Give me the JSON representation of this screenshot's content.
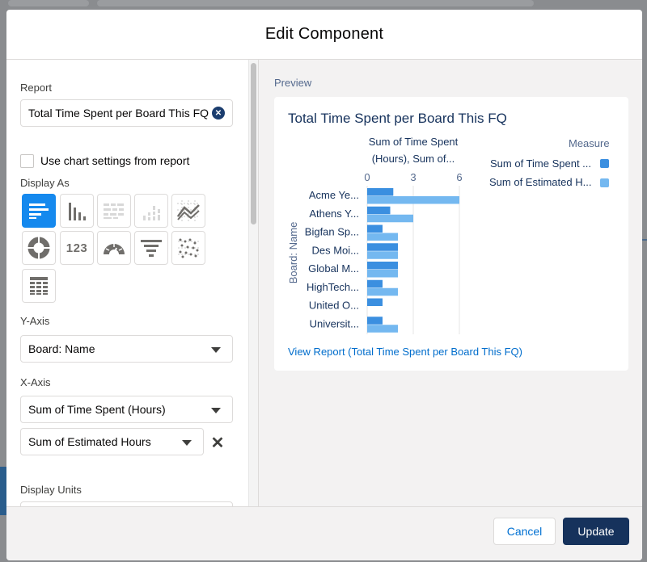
{
  "modal": {
    "title": "Edit Component"
  },
  "form": {
    "report_label": "Report",
    "report_value": "Total Time Spent per Board This FQ",
    "use_chart_settings_label": "Use chart settings from report",
    "use_chart_settings_checked": false,
    "display_as_label": "Display As",
    "display_as_selected": "horizontal-bar",
    "display_types": [
      "horizontal-bar",
      "vertical-bar",
      "stacked-horizontal-bar",
      "stacked-vertical-bar",
      "line",
      "donut",
      "metric",
      "gauge",
      "funnel",
      "scatter",
      "table"
    ],
    "metric_tile_text": "123",
    "y_axis_label": "Y-Axis",
    "y_axis_value": "Board: Name",
    "x_axis_label": "X-Axis",
    "x_axis_values": [
      "Sum of Time Spent (Hours)",
      "Sum of Estimated Hours"
    ],
    "display_units_label": "Display Units",
    "remove_icon": "close-icon"
  },
  "preview": {
    "label": "Preview",
    "card_title": "Total Time Spent per Board This FQ",
    "view_report_link": "View Report (Total Time Spent per Board This FQ)"
  },
  "chart_data": {
    "type": "bar",
    "orientation": "horizontal",
    "title": "Total Time Spent per Board This FQ",
    "xlabel_lines": [
      "Sum of Time Spent",
      "(Hours), Sum of..."
    ],
    "ylabel": "Board: Name",
    "x_ticks": [
      0,
      3,
      6
    ],
    "xlim": [
      0,
      6
    ],
    "categories": [
      "Acme Ye...",
      "Athens Y...",
      "Bigfan Sp...",
      "Des Moi...",
      "Global M...",
      "HighTech...",
      "United O...",
      "Universit..."
    ],
    "series": [
      {
        "name": "Sum of Time Spent ...",
        "values": [
          1.7,
          1.5,
          1.0,
          2.0,
          2.0,
          1.0,
          1.0,
          1.0
        ],
        "color": "#3b8fe0"
      },
      {
        "name": "Sum of Estimated H...",
        "values": [
          6.0,
          3.0,
          2.0,
          2.0,
          2.0,
          2.0,
          0,
          2.0
        ],
        "color": "#74b8f0"
      }
    ],
    "legend_title": "Measure",
    "legend_position": "top-right",
    "grid": true
  },
  "footer": {
    "cancel_label": "Cancel",
    "update_label": "Update"
  },
  "colors": {
    "brand": "#16325c",
    "accent": "#1589ee",
    "link": "#006dcc"
  }
}
